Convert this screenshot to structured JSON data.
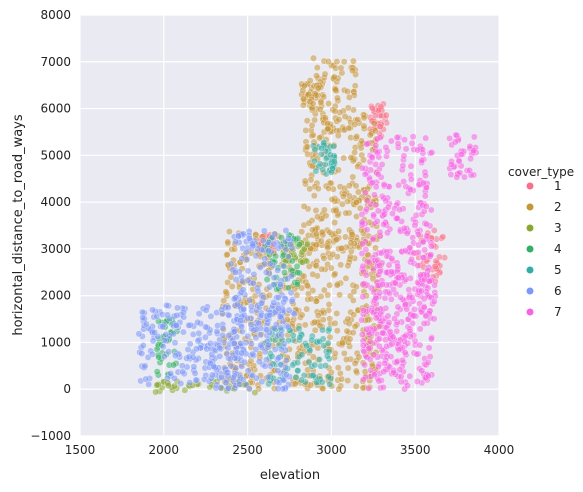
{
  "chart_data": {
    "type": "scatter",
    "xlabel": "elevation",
    "ylabel": "horizontal_distance_to_road_ways",
    "xlim": [
      1500,
      4000
    ],
    "ylim": [
      -1000,
      8000
    ],
    "xticks": [
      1500,
      2000,
      2500,
      3000,
      3500,
      4000
    ],
    "yticks": [
      -1000,
      0,
      1000,
      2000,
      3000,
      4000,
      5000,
      6000,
      7000,
      8000
    ],
    "xtick_labels": [
      "1500",
      "2000",
      "2500",
      "3000",
      "3500",
      "4000"
    ],
    "ytick_labels": [
      "−1000",
      "0",
      "1000",
      "2000",
      "3000",
      "4000",
      "5000",
      "6000",
      "7000",
      "8000"
    ],
    "grid": true,
    "legend": {
      "title": "cover_type",
      "position": "right"
    },
    "series": [
      {
        "name": "1",
        "color": "#f77189",
        "regions": [
          {
            "x": [
              3500,
              3680
            ],
            "y": [
              2300,
              3400
            ]
          },
          {
            "x": [
              3230,
              3330
            ],
            "y": [
              5300,
              6100
            ]
          },
          {
            "x": [
              2570,
              2660
            ],
            "y": [
              2900,
              3300
            ]
          }
        ]
      },
      {
        "name": "2",
        "color": "#c6963a",
        "regions": [
          {
            "x": [
              2350,
              3300
            ],
            "y": [
              0,
              3400
            ]
          },
          {
            "x": [
              2830,
              3270
            ],
            "y": [
              3000,
              5900
            ]
          },
          {
            "x": [
              2880,
              3150
            ],
            "y": [
              5500,
              7100
            ]
          },
          {
            "x": [
              2820,
              2940
            ],
            "y": [
              6000,
              6600
            ]
          }
        ]
      },
      {
        "name": "3",
        "color": "#88a832",
        "regions": [
          {
            "x": [
              1950,
              2550
            ],
            "y": [
              -100,
              200
            ]
          },
          {
            "x": [
              2700,
              2860
            ],
            "y": [
              2700,
              3200
            ]
          }
        ]
      },
      {
        "name": "4",
        "color": "#32b166",
        "regions": [
          {
            "x": [
              1960,
              2080
            ],
            "y": [
              300,
              1500
            ]
          },
          {
            "x": [
              2600,
              2820
            ],
            "y": [
              2100,
              3300
            ]
          }
        ]
      },
      {
        "name": "5",
        "color": "#36ada4",
        "regions": [
          {
            "x": [
              2600,
              3000
            ],
            "y": [
              100,
              1300
            ]
          },
          {
            "x": [
              2890,
              3020
            ],
            "y": [
              4600,
              5300
            ]
          }
        ]
      },
      {
        "name": "6",
        "color": "#7e98f7",
        "regions": [
          {
            "x": [
              1850,
              2750
            ],
            "y": [
              0,
              1800
            ]
          },
          {
            "x": [
              2400,
              2780
            ],
            "y": [
              1200,
              3400
            ]
          },
          {
            "x": [
              2250,
              2550
            ],
            "y": [
              200,
              1000
            ]
          }
        ]
      },
      {
        "name": "7",
        "color": "#f564e4",
        "regions": [
          {
            "x": [
              3180,
              3600
            ],
            "y": [
              0,
              5400
            ]
          },
          {
            "x": [
              3250,
              3450
            ],
            "y": [
              300,
              3000
            ]
          },
          {
            "x": [
              3700,
              3870
            ],
            "y": [
              4500,
              5450
            ]
          },
          {
            "x": [
              3480,
              3620
            ],
            "y": [
              1500,
              2500
            ]
          }
        ]
      }
    ]
  }
}
